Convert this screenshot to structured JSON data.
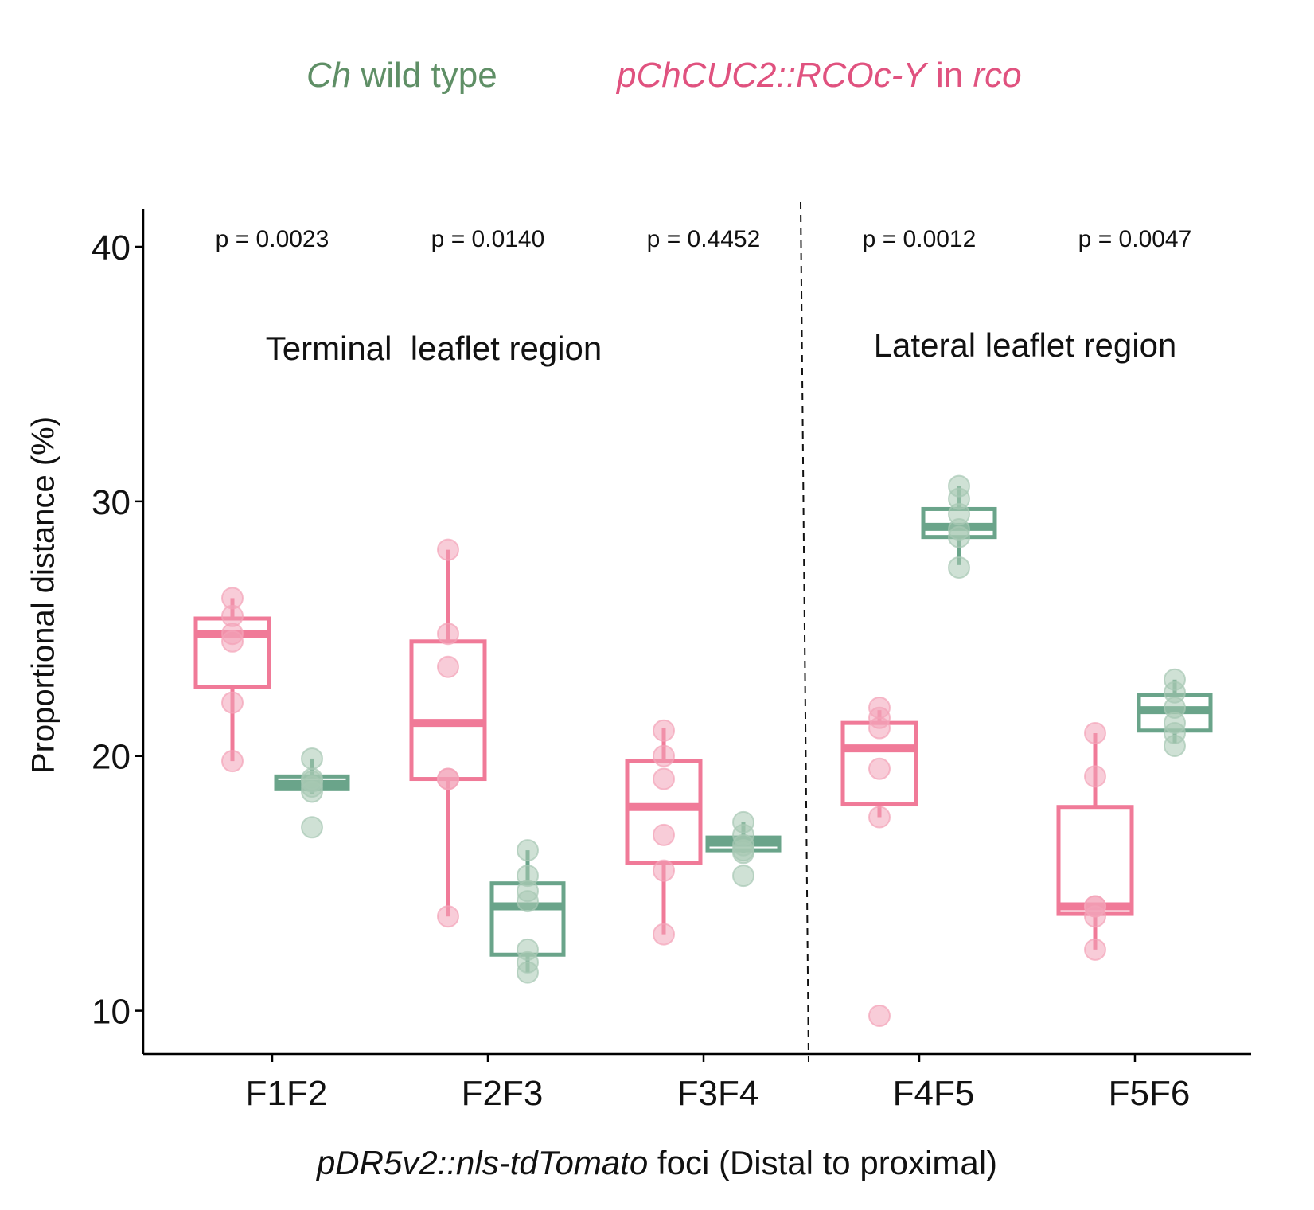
{
  "legend": {
    "wt": {
      "italic": "Ch",
      "text": " wild type",
      "color": "#5f8f66"
    },
    "transgenic": {
      "italic1": "pChCUC2::RCOc-Y",
      "text": " in ",
      "italic2": "rco",
      "color": "#e0527f"
    }
  },
  "chart_data": {
    "type": "box",
    "ylabel": "Proportional distance (%)",
    "xlabel_italic": "pDR5v2::nls-tdTomato",
    "xlabel_rest": " foci (Distal to proximal)",
    "ylim": [
      8.3,
      41.5
    ],
    "yticks": [
      10,
      20,
      30,
      40
    ],
    "categories": [
      "F1F2",
      "F2F3",
      "F3F4",
      "F4F5",
      "F5F6"
    ],
    "pvalues": [
      "p = 0.0023",
      "p = 0.0140",
      "p = 0.4452",
      "p = 0.0012",
      "p = 0.0047"
    ],
    "regions": [
      {
        "label": "Terminal  leaflet region"
      },
      {
        "label": "Lateral leaflet region"
      }
    ],
    "divider_between": [
      3,
      4
    ],
    "grid": false,
    "series": [
      {
        "name": "pChCUC2::RCOc-Y in rco",
        "color": "#f07a98",
        "pointColor": "#f3a2b8",
        "boxes": [
          {
            "min": 19.8,
            "q1": 22.7,
            "median": 24.8,
            "q3": 25.4,
            "max": 26.2
          },
          {
            "min": 13.7,
            "q1": 19.1,
            "median": 21.3,
            "q3": 24.5,
            "max": 28.1
          },
          {
            "min": 13.0,
            "q1": 15.8,
            "median": 18.0,
            "q3": 19.8,
            "max": 21.1
          },
          {
            "min": 17.6,
            "q1": 18.1,
            "median": 20.3,
            "q3": 21.3,
            "max": 21.8
          },
          {
            "min": 12.4,
            "q1": 13.8,
            "median": 14.1,
            "q3": 18.0,
            "max": 20.9
          }
        ],
        "points": [
          [
            19.8,
            22.1,
            24.5,
            24.8,
            25.5,
            26.2
          ],
          [
            13.7,
            19.1,
            19.1,
            23.5,
            24.8,
            28.1
          ],
          [
            13.0,
            15.5,
            16.9,
            19.1,
            20.0,
            21.0
          ],
          [
            9.8,
            17.6,
            19.5,
            21.1,
            21.5,
            21.9
          ],
          [
            12.4,
            13.7,
            14.1,
            14.1,
            19.2,
            20.9
          ]
        ]
      },
      {
        "name": "Ch wild type",
        "color": "#6aa48a",
        "pointColor": "#a7c8b3",
        "boxes": [
          {
            "min": 18.5,
            "q1": 18.7,
            "median": 18.9,
            "q3": 19.2,
            "max": 19.9
          },
          {
            "min": 11.5,
            "q1": 12.2,
            "median": 14.1,
            "q3": 15.0,
            "max": 16.3
          },
          {
            "min": 16.2,
            "q1": 16.3,
            "median": 16.6,
            "q3": 16.8,
            "max": 17.4
          },
          {
            "min": 27.5,
            "q1": 28.6,
            "median": 29.0,
            "q3": 29.7,
            "max": 30.6
          },
          {
            "min": 20.5,
            "q1": 21.0,
            "median": 21.8,
            "q3": 22.4,
            "max": 23.0
          }
        ],
        "points": [
          [
            17.2,
            18.6,
            18.8,
            19.0,
            19.1,
            19.9
          ],
          [
            11.5,
            11.9,
            12.4,
            14.3,
            14.7,
            15.3,
            16.3
          ],
          [
            15.3,
            16.2,
            16.3,
            16.5,
            16.9,
            17.4
          ],
          [
            27.4,
            28.6,
            28.9,
            29.5,
            30.1,
            30.6
          ],
          [
            20.4,
            20.9,
            21.3,
            21.9,
            22.5,
            23.0
          ]
        ]
      }
    ]
  }
}
